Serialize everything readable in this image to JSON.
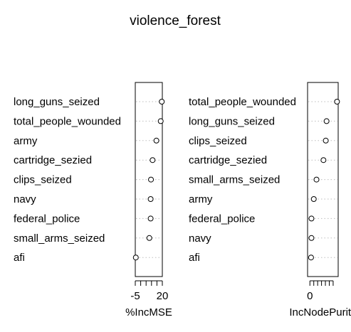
{
  "chart_data": {
    "type": "scatter",
    "title": "violence_forest",
    "panels": [
      {
        "xlabel": "%IncMSE",
        "xlim": [
          -5,
          20
        ],
        "xticks": [
          -5,
          0,
          5,
          10,
          15,
          20
        ],
        "xticklabels": [
          "-5",
          "",
          "",
          "",
          "",
          "20"
        ],
        "categories": [
          "long_guns_seized",
          "total_people_wounded",
          "army",
          "cartridge_sezied",
          "clips_seized",
          "navy",
          "federal_police",
          "small_arms_seized",
          "afi"
        ],
        "values": [
          19.5,
          18.5,
          14.5,
          11.0,
          9.5,
          9.2,
          9.2,
          8.0,
          -4.5
        ]
      },
      {
        "xlabel": "IncNodePurity",
        "xlim": [
          -6,
          73
        ],
        "xticks": [
          0,
          10,
          20,
          30,
          40,
          50,
          60
        ],
        "xticklabels": [
          "0",
          "",
          "",
          "",
          "",
          "",
          ""
        ],
        "categories": [
          "total_people_wounded",
          "long_guns_seized",
          "clips_seized",
          "cartridge_sezied",
          "small_arms_seized",
          "army",
          "federal_police",
          "navy",
          "afi"
        ],
        "values": [
          70,
          43,
          41,
          35,
          17,
          10,
          4,
          4,
          3
        ]
      }
    ]
  }
}
